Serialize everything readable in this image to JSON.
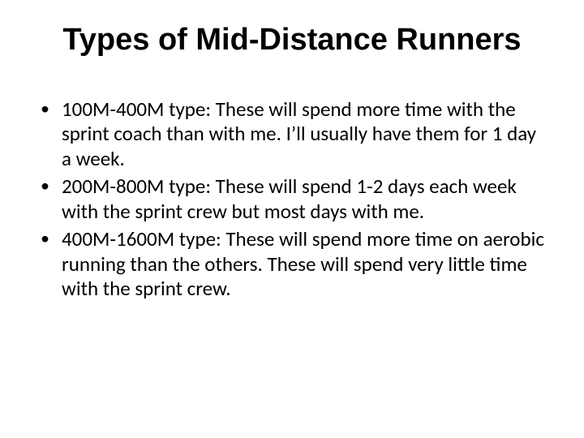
{
  "slide": {
    "title": "Types of Mid-Distance Runners",
    "title_font_family": "Gill Sans MT",
    "title_font_weight": 700,
    "title_fontsize_pt": 32,
    "title_color": "#000000",
    "body_font_family": "Calibri",
    "body_fontsize_pt": 22,
    "body_color": "#000000",
    "background_color": "#ffffff",
    "bullets": [
      "100M-400M type: These will spend more time with the sprint coach than with me.  I’ll usually have them for 1 day a week.",
      "200M-800M type: These will spend 1-2 days each week with the sprint crew but most days with me.",
      "400M-1600M type: These will spend more time on aerobic running than the others.  These will spend very little time with the sprint crew."
    ]
  }
}
